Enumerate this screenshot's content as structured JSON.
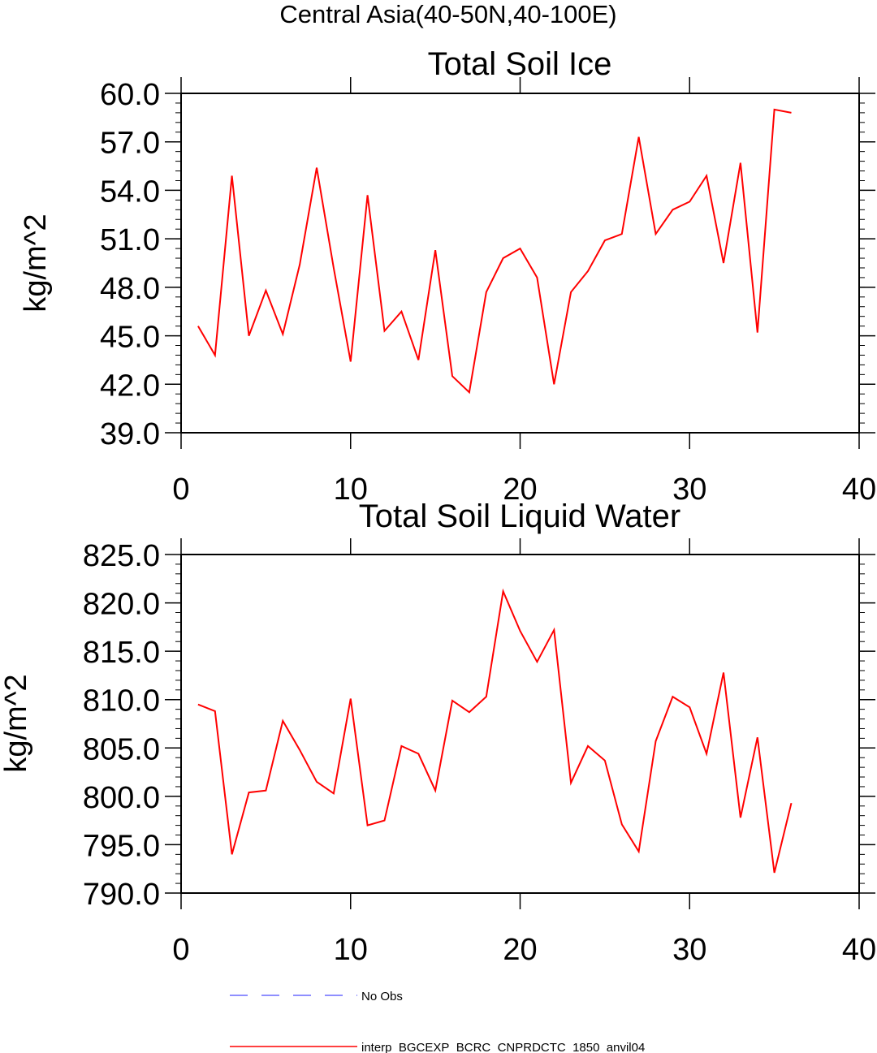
{
  "figure_title": "Central Asia(40-50N,40-100E)",
  "legend": [
    {
      "label": "No Obs",
      "color": "#6a6aff",
      "style": "dashed"
    },
    {
      "label": "interp_BGCEXP_BCRC_CNPRDCTC_1850_anvil04",
      "color": "#ff0000",
      "style": "solid"
    }
  ],
  "chart_data": [
    {
      "type": "line",
      "title": "Total Soil Ice",
      "xlabel": "",
      "ylabel": "kg/m^2",
      "xlim": [
        0,
        40
      ],
      "ylim": [
        39,
        60
      ],
      "xticks": [
        0,
        10,
        20,
        30,
        40
      ],
      "xtick_labels": [
        "0",
        "10",
        "20",
        "30",
        "40"
      ],
      "yticks": [
        39,
        42,
        45,
        48,
        51,
        54,
        57,
        60
      ],
      "ytick_labels": [
        "39.0",
        "42.0",
        "45.0",
        "48.0",
        "51.0",
        "54.0",
        "57.0",
        "60.0"
      ],
      "y_minor_step": 0.6,
      "x": [
        1,
        2,
        3,
        4,
        5,
        6,
        7,
        8,
        9,
        10,
        11,
        12,
        13,
        14,
        15,
        16,
        17,
        18,
        19,
        20,
        21,
        22,
        23,
        24,
        25,
        26,
        27,
        28,
        29,
        30,
        31,
        32,
        33,
        34,
        35,
        36
      ],
      "series": [
        {
          "name": "interp_BGCEXP_BCRC_CNPRDCTC_1850_anvil04",
          "color": "#ff0000",
          "values": [
            45.6,
            43.8,
            54.9,
            45.0,
            47.8,
            45.1,
            49.4,
            55.4,
            49.2,
            43.4,
            53.7,
            45.3,
            46.5,
            43.5,
            50.3,
            42.5,
            41.5,
            47.7,
            49.8,
            50.4,
            48.6,
            42.0,
            47.7,
            49.0,
            50.9,
            51.3,
            57.3,
            51.3,
            52.8,
            53.3,
            54.9,
            49.5,
            55.7,
            45.2,
            59.0,
            58.8
          ]
        }
      ]
    },
    {
      "type": "line",
      "title": "Total Soil Liquid Water",
      "xlabel": "",
      "ylabel": "kg/m^2",
      "xlim": [
        0,
        40
      ],
      "ylim": [
        790,
        825
      ],
      "xticks": [
        0,
        10,
        20,
        30,
        40
      ],
      "xtick_labels": [
        "0",
        "10",
        "20",
        "30",
        "40"
      ],
      "yticks": [
        790,
        795,
        800,
        805,
        810,
        815,
        820,
        825
      ],
      "ytick_labels": [
        "790.0",
        "795.0",
        "800.0",
        "805.0",
        "810.0",
        "815.0",
        "820.0",
        "825.0"
      ],
      "y_minor_step": 1,
      "x": [
        1,
        2,
        3,
        4,
        5,
        6,
        7,
        8,
        9,
        10,
        11,
        12,
        13,
        14,
        15,
        16,
        17,
        18,
        19,
        20,
        21,
        22,
        23,
        24,
        25,
        26,
        27,
        28,
        29,
        30,
        31,
        32,
        33,
        34,
        35,
        36
      ],
      "series": [
        {
          "name": "interp_BGCEXP_BCRC_CNPRDCTC_1850_anvil04",
          "color": "#ff0000",
          "values": [
            809.5,
            808.8,
            794.0,
            800.4,
            800.6,
            807.8,
            804.8,
            801.5,
            800.3,
            810.1,
            797.0,
            797.5,
            805.2,
            804.4,
            800.6,
            809.9,
            808.7,
            810.3,
            821.2,
            817.1,
            813.9,
            817.2,
            801.4,
            805.2,
            803.7,
            797.1,
            794.3,
            805.7,
            810.3,
            809.2,
            804.4,
            812.8,
            797.8,
            806.1,
            792.1,
            799.3
          ]
        }
      ]
    }
  ]
}
